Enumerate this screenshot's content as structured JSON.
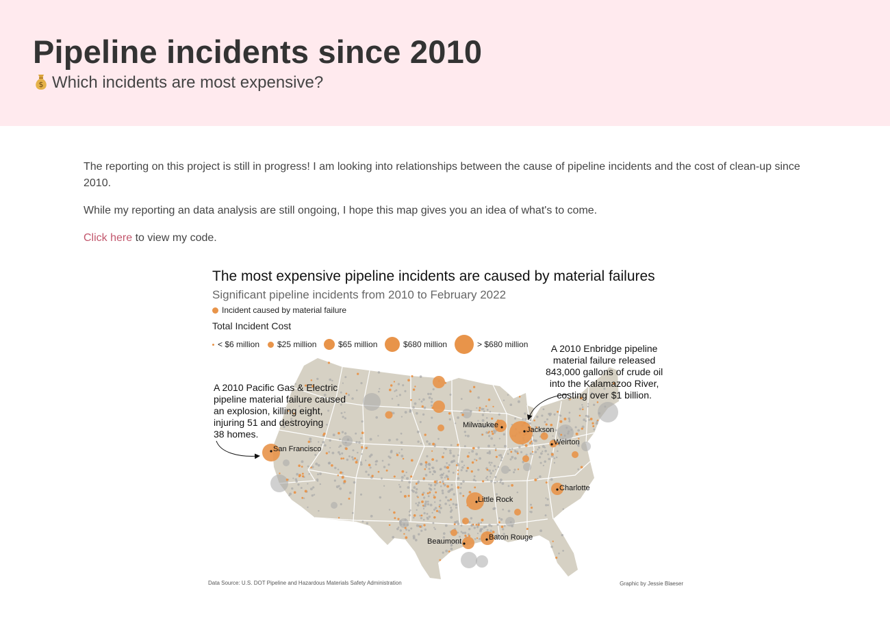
{
  "header": {
    "title": "Pipeline incidents since 2010",
    "subtitle_icon": "money-bag-icon",
    "subtitle": "Which incidents are most expensive?"
  },
  "intro": {
    "p1": "The reporting on this project is still in progress! I am looking into relationships between the cause of pipeline incidents and the cost of clean-up since 2010.",
    "p2": "While my reporting an data analysis are still ongoing, I hope this map gives you an idea of what's to come.",
    "link_text": "Click here",
    "link_suffix": " to view my code."
  },
  "chart": {
    "title": "The most expensive pipeline incidents are caused by material failures",
    "subtitle": "Significant pipeline incidents from 2010 to February 2022",
    "legend_cause": "Incident caused by material failure",
    "size_legend_title": "Total Incident Cost",
    "size_legend": [
      "< $6 million",
      "$25 million",
      "$65 million",
      "$680 million",
      "> $680 million"
    ],
    "annotation_west": "A 2010 Pacific Gas & Electric\npipeline material failure caused\nan explosion, killing eight,\ninjuring 51 and destroying\n38 homes.",
    "annotation_east": "A 2010 Enbridge pipeline\nmaterial failure released\n843,000 gallons of crude oil\ninto the Kalamazoo River,\ncosting over $1 billion.",
    "cities": [
      "San Francisco",
      "Milwaukee",
      "Jackson",
      "Weirton",
      "Charlotte",
      "Little Rock",
      "Baton Rouge",
      "Beaumont"
    ],
    "source": "Data Source: U.S. DOT Pipeline and Hazardous Materials Safety Administration",
    "credit": "Graphic by Jessie Blaeser",
    "colors": {
      "material_failure": "#e8944a",
      "other": "#a9a9a9",
      "land": "#d6d1c4",
      "header_bg": "#ffeaee",
      "link": "#c2566c"
    }
  }
}
